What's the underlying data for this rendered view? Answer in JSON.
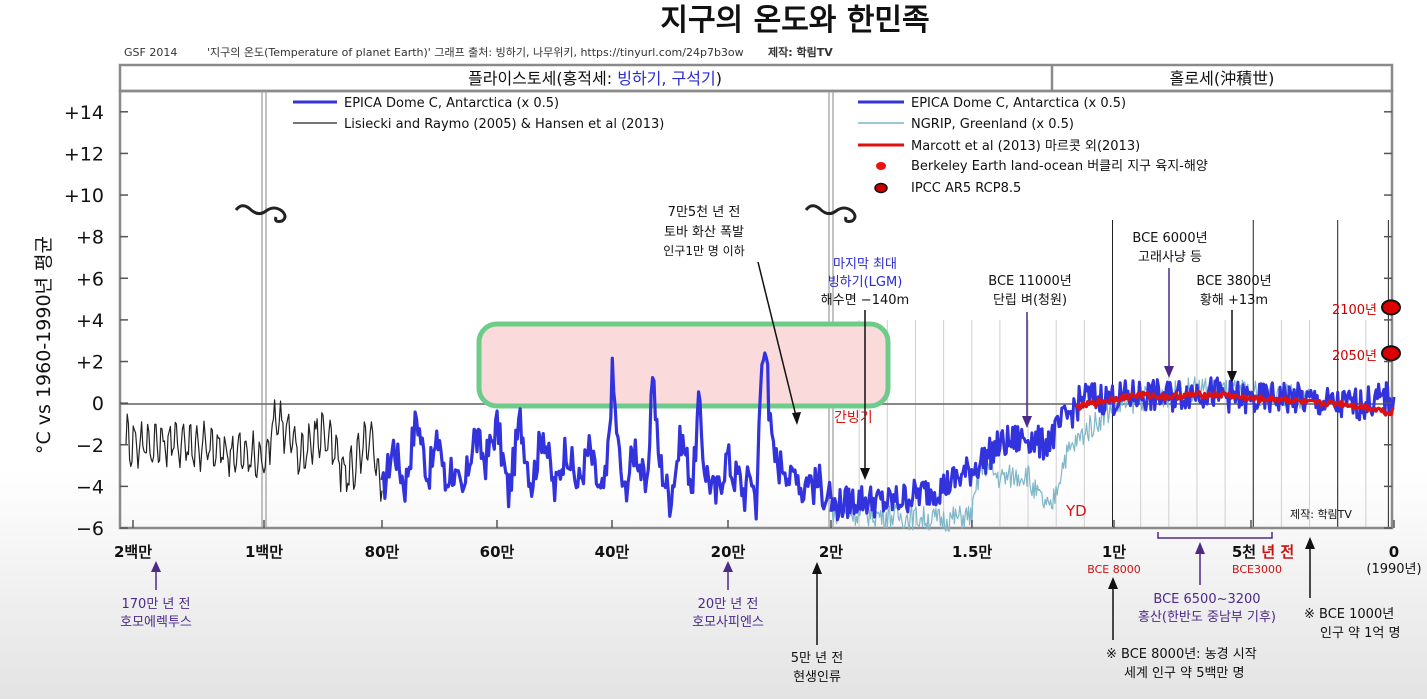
{
  "title": "지구의 온도와 한민족",
  "credit_line": {
    "code": "GSF 2014",
    "source": "'지구의 온도(Temperature of planet Earth)' 그래프 출처: 빙하기, 나무위키, https://tinyurl.com/24p7b3ow",
    "maker": "제작: 학림TV"
  },
  "header": {
    "pleistocene_prefix": "플라이스토세(홍적세: ",
    "pleistocene_highlight": "빙하기, 구석기",
    "pleistocene_suffix": ")",
    "holocene": "홀로세(沖積世)"
  },
  "ylabel": "°C vs 1960-1990년 평균",
  "legend_left": [
    {
      "label": "EPICA Dome C, Antarctica  (x 0.5)",
      "color": "#3333dd"
    },
    {
      "label": "Lisiecki and Raymo (2005)  & Hansen et al (2013)",
      "color": "#222222"
    }
  ],
  "legend_right": [
    {
      "label": "EPICA Dome C, Antarctica  (x 0.5)",
      "color": "#3333dd"
    },
    {
      "label": "NGRIP, Greenland  (x 0.5)",
      "color": "#7fb6c8"
    },
    {
      "label": "Marcott et al (2013)  마르콧 외(2013)",
      "color": "#dd1111"
    },
    {
      "label": "Berkeley Earth land-ocean  버클리 지구 육지-해양",
      "color": "#ee1111"
    },
    {
      "label": "IPCC AR5 RCP8.5",
      "color": "#cc0000"
    }
  ],
  "annotations": {
    "toba": [
      "7만5천 년 전",
      "토바 화산 폭발",
      "인구1만 명 이하"
    ],
    "lgm": [
      "마지막 최대",
      "빙하기(LGM)",
      "해수면 −140m"
    ],
    "rice": [
      "BCE 11000년",
      "단립 벼(청원)"
    ],
    "whale": [
      "BCE 6000년",
      "고래사냥 등"
    ],
    "yellow_sea": [
      "BCE 3800년",
      "황해 +13m"
    ],
    "interglacial": "간빙기",
    "yd": "YD",
    "maker_inner": "제작: 학림TV",
    "y2100": "2100년",
    "y2050": "2050년",
    "homo_erectus": [
      "170만 년 전",
      "호모에렉투스"
    ],
    "homo_sapiens": [
      "20만 년 전",
      "호모사피엔스"
    ],
    "modern_human": [
      "5만 년 전",
      "현생인류"
    ],
    "hongsan": [
      "BCE 6500~3200",
      "홍산(한반도 중남부 기후)"
    ],
    "bce8000_note": [
      "※  BCE 8000년:  농경 시작",
      "세계 인구 약 5백만 명"
    ],
    "bce1000_note": [
      "※  BCE 1000년",
      "인구 약 1억 명"
    ]
  },
  "colors": {
    "epica": "#3333dd",
    "lisiecki": "#222222",
    "ngrip": "#7fb6c8",
    "marcott": "#dd1111",
    "box_fill": "#fadada",
    "box_stroke": "#6dcc8a",
    "accent_blue": "#2a2ad0",
    "purple": "#4b2a8a"
  },
  "chart_data": {
    "type": "line",
    "title": "지구의 온도와 한민족",
    "ylabel": "°C vs 1960-1990년 평균",
    "ylim": [
      -6,
      15
    ],
    "yticks": [
      "+14",
      "+12",
      "+10",
      "+8",
      "+6",
      "+4",
      "+2",
      "0",
      "−2",
      "−4",
      "−6"
    ],
    "xticks": [
      {
        "label": "2백만",
        "sub": ""
      },
      {
        "label": "1백만",
        "sub": ""
      },
      {
        "label": "80만",
        "sub": ""
      },
      {
        "label": "60만",
        "sub": ""
      },
      {
        "label": "40만",
        "sub": ""
      },
      {
        "label": "20만",
        "sub": ""
      },
      {
        "label": "2만",
        "sub": ""
      },
      {
        "label": "1.5만",
        "sub": ""
      },
      {
        "label": "1만",
        "sub": "BCE 8000"
      },
      {
        "label": "5천 ",
        "label_red": "년 전",
        "sub": "BCE3000"
      },
      {
        "label": "0",
        "sub": "(1990년)"
      }
    ],
    "segments": [
      "2백만~1백만 년 전",
      "1백만~2만 년 전",
      "2만 년 전~1990년"
    ],
    "series": [
      {
        "name": "EPICA Dome C, Antarctica (x 0.5)",
        "color": "#3333dd",
        "x": [
          800,
          780,
          760,
          740,
          720,
          700,
          690,
          680,
          660,
          640,
          620,
          600,
          580,
          560,
          540,
          520,
          500,
          480,
          460,
          440,
          420,
          410,
          400,
          390,
          380,
          360,
          340,
          330,
          320,
          300,
          280,
          260,
          250,
          240,
          220,
          200,
          190,
          180,
          170,
          160,
          150,
          140,
          130,
          128,
          120,
          110,
          100,
          90,
          80,
          70,
          60,
          50,
          40,
          30,
          25,
          20
        ],
        "y": [
          -4.4,
          -2.0,
          -4.0,
          -0.6,
          -3.5,
          -1.6,
          -4.0,
          -3.0,
          -4.6,
          -1.5,
          -2.8,
          -1.0,
          -4.4,
          -0.8,
          -3.9,
          -1.2,
          -4.3,
          -2.0,
          -4.0,
          -2.2,
          -4.5,
          -3.6,
          1.4,
          -2.0,
          -4.4,
          -2.0,
          -4.5,
          1.8,
          -2.5,
          -4.6,
          -1.6,
          -4.0,
          0.0,
          -3.0,
          -4.5,
          -2.5,
          -3.5,
          -3.5,
          -4.4,
          -3.2,
          -4.8,
          1.9,
          2.7,
          -0.5,
          -2.5,
          -3.0,
          -2.8,
          -3.8,
          -3.0,
          -4.3,
          -3.4,
          -4.0,
          -3.8,
          -4.4,
          -4.5,
          -4.6
        ]
      },
      {
        "name": "Lisiecki and Raymo (2005) & Hansen et al (2013)",
        "color": "#222222",
        "x": [
          2000,
          1800,
          1600,
          1400,
          1200,
          1000,
          980,
          940,
          900,
          860,
          820,
          800
        ],
        "y": [
          -1.8,
          -2.0,
          -1.8,
          -2.2,
          -2.4,
          -2.8,
          -0.5,
          -2.5,
          -1.3,
          -3.5,
          -1.8,
          -4.2
        ]
      },
      {
        "name": "EPICA Dome C, Antarctica (x 0.5)",
        "color": "#3333dd",
        "x": [
          20,
          19,
          18,
          17,
          16,
          15,
          14.5,
          14,
          13,
          12.5,
          12,
          11.7,
          11,
          10,
          9,
          8,
          7,
          6,
          5,
          4,
          3,
          2,
          1,
          0
        ],
        "y": [
          -5.0,
          -4.6,
          -4.8,
          -4.4,
          -4.0,
          -3.2,
          -2.6,
          -2.0,
          -1.6,
          -2.0,
          -1.4,
          -0.8,
          0.3,
          0.2,
          0.4,
          0.3,
          0.6,
          0.4,
          0.1,
          0.3,
          0.1,
          -0.1,
          0.0,
          0.3
        ]
      },
      {
        "name": "NGRIP, Greenland (x 0.5)",
        "color": "#7fb6c8",
        "x": [
          20,
          18,
          16,
          15,
          14.7,
          14.5,
          14,
          13,
          12.9,
          12.2,
          11.7,
          11,
          10,
          9,
          8,
          7,
          6,
          5,
          4,
          3
        ],
        "y": [
          -5.2,
          -5.4,
          -5.6,
          -5.4,
          -3.2,
          -3.0,
          -3.6,
          -3.4,
          -4.0,
          -5.2,
          -2.6,
          -1.4,
          -0.2,
          0.2,
          0.4,
          0.7,
          0.6,
          0.5,
          0.4,
          0.3
        ]
      },
      {
        "name": "Marcott et al (2013)",
        "color": "#dd1111",
        "x": [
          11.3,
          10,
          9,
          8,
          7,
          6,
          5,
          4,
          3,
          2,
          1,
          0.5,
          0.2,
          0
        ],
        "y": [
          -0.2,
          0.2,
          0.4,
          0.3,
          0.4,
          0.4,
          0.2,
          0.2,
          0.0,
          0.0,
          -0.2,
          -0.3,
          -0.5,
          -0.3
        ]
      }
    ],
    "points": [
      {
        "name": "2100년",
        "x": 0,
        "y": 4.6,
        "label": "2100년"
      },
      {
        "name": "2050년",
        "x": 0,
        "y": 2.4,
        "label": "2050년"
      }
    ]
  }
}
